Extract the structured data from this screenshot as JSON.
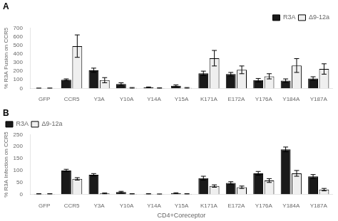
{
  "chart_data": [
    {
      "type": "bar",
      "title": "A",
      "categories": [
        "GFP",
        "CCR5",
        "Y3A",
        "Y10A",
        "Y14A",
        "Y15A",
        "K171A",
        "E172A",
        "Y176A",
        "Y184A",
        "Y187A"
      ],
      "series": [
        {
          "name": "R3A",
          "color": "#1a1a1a",
          "values": [
            2,
            100,
            210,
            50,
            12,
            30,
            175,
            165,
            95,
            90,
            115
          ],
          "errors": [
            1,
            10,
            25,
            15,
            5,
            10,
            25,
            20,
            20,
            20,
            20
          ]
        },
        {
          "name": "Δ9-12a",
          "color": "#efefef",
          "values": [
            2,
            490,
            95,
            5,
            3,
            5,
            350,
            215,
            140,
            265,
            225
          ],
          "errors": [
            2,
            130,
            30,
            5,
            3,
            5,
            90,
            45,
            30,
            80,
            60
          ]
        }
      ],
      "ylabel": "% R3A Fusion on CCR5",
      "ylim": [
        0,
        700
      ],
      "yticks": [
        0,
        100,
        200,
        300,
        400,
        500,
        600,
        700
      ],
      "grid": false,
      "legend": "upper right"
    },
    {
      "type": "bar",
      "title": "B",
      "categories": [
        "GFP",
        "CCR5",
        "Y3A",
        "Y10A",
        "Y14A",
        "Y15A",
        "K171A",
        "E172A",
        "Y176A",
        "Y184A",
        "Y187A"
      ],
      "series": [
        {
          "name": "R3A",
          "color": "#1a1a1a",
          "values": [
            2,
            100,
            82,
            10,
            2,
            5,
            68,
            48,
            88,
            188,
            75
          ],
          "errors": [
            1,
            5,
            5,
            3,
            1,
            2,
            8,
            5,
            8,
            10,
            8
          ]
        },
        {
          "name": "Δ9-12a",
          "color": "#efefef",
          "values": [
            2,
            65,
            4,
            2,
            1,
            2,
            35,
            30,
            58,
            88,
            20
          ],
          "errors": [
            1,
            5,
            2,
            1,
            1,
            1,
            5,
            5,
            8,
            12,
            5
          ]
        }
      ],
      "xlabel": "CD4+Coreceptor",
      "ylabel": "% R3A Infection on CCR5",
      "ylim": [
        0,
        250
      ],
      "yticks": [
        0,
        50,
        100,
        150,
        200,
        250
      ],
      "grid": false,
      "legend": "upper left"
    }
  ]
}
